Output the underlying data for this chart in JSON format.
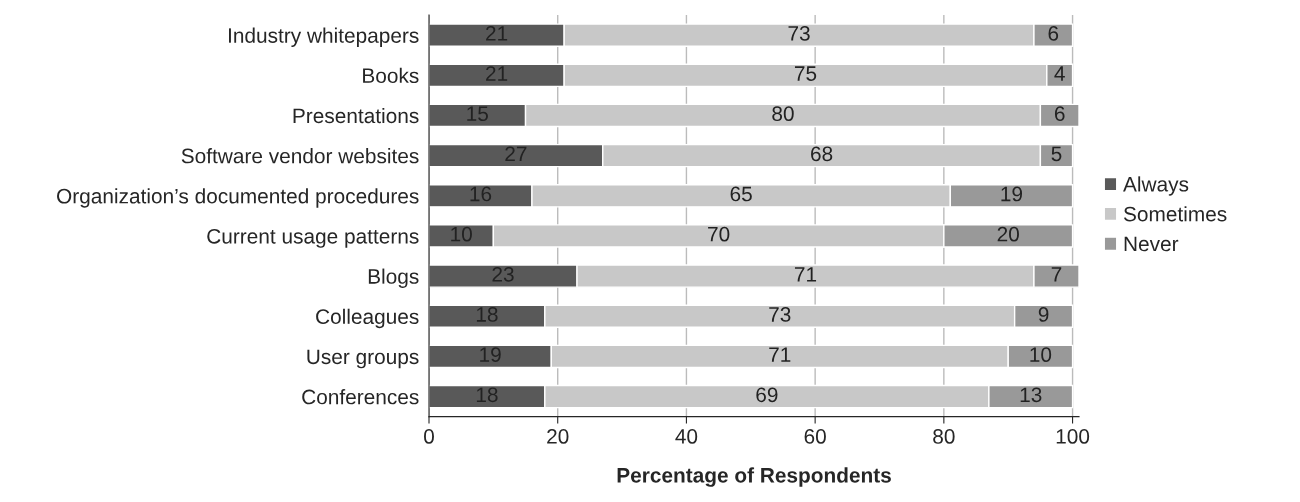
{
  "chart_data": {
    "type": "bar",
    "orientation": "horizontal",
    "stacked": true,
    "xlabel": "Percentage of Respondents",
    "categories": [
      "Industry whitepapers",
      "Books",
      "Presentations",
      "Software vendor websites",
      "Organization’s documented procedures",
      "Current usage patterns",
      "Blogs",
      "Colleagues",
      "User groups",
      "Conferences"
    ],
    "series": [
      {
        "name": "Always",
        "color": "#595959",
        "values": [
          21,
          21,
          15,
          27,
          16,
          10,
          23,
          18,
          19,
          18
        ]
      },
      {
        "name": "Sometimes",
        "color": "#c8c8c8",
        "values": [
          73,
          75,
          80,
          68,
          65,
          70,
          71,
          73,
          71,
          69
        ]
      },
      {
        "name": "Never",
        "color": "#999999",
        "values": [
          6,
          4,
          6,
          5,
          19,
          20,
          7,
          9,
          10,
          13
        ]
      }
    ],
    "xlim": [
      0,
      101
    ],
    "xticks": [
      0,
      20,
      40,
      60,
      80,
      100
    ],
    "grid": "x",
    "legend": "right",
    "data_labels": true
  }
}
